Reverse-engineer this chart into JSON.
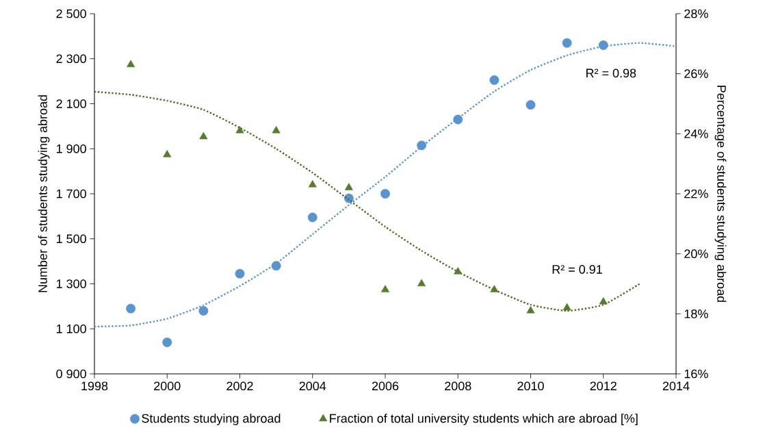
{
  "chart_data": {
    "type": "scatter",
    "xlabel": null,
    "ylabel": "Number of students studying abroad",
    "y2label": "Percentage of students studying abroad",
    "xlim": [
      1998,
      2014
    ],
    "xticks": [
      1998,
      2000,
      2002,
      2004,
      2006,
      2008,
      2010,
      2012,
      2014
    ],
    "ylim": [
      900,
      2500
    ],
    "yticks": [
      {
        "value": 900,
        "label": "0 900"
      },
      {
        "value": 1100,
        "label": "1 100"
      },
      {
        "value": 1300,
        "label": "1 300"
      },
      {
        "value": 1500,
        "label": "1 500"
      },
      {
        "value": 1700,
        "label": "1 700"
      },
      {
        "value": 1900,
        "label": "1 900"
      },
      {
        "value": 2100,
        "label": "2 100"
      },
      {
        "value": 2300,
        "label": "2 300"
      },
      {
        "value": 2500,
        "label": "2 500"
      }
    ],
    "y2lim": [
      16,
      28
    ],
    "y2ticks": [
      {
        "value": 16,
        "label": "16%"
      },
      {
        "value": 18,
        "label": "18%"
      },
      {
        "value": 20,
        "label": "20%"
      },
      {
        "value": 22,
        "label": "22%"
      },
      {
        "value": 24,
        "label": "24%"
      },
      {
        "value": 26,
        "label": "26%"
      },
      {
        "value": 28,
        "label": "28%"
      }
    ],
    "grid": false,
    "legend": "bottom",
    "series": [
      {
        "name": "Students studying abroad",
        "marker": "circle",
        "color": "#5b93cc",
        "x": [
          1999,
          2000,
          2001,
          2002,
          2003,
          2004,
          2005,
          2006,
          2007,
          2008,
          2009,
          2010,
          2011,
          2012
        ],
        "values": [
          1190,
          1040,
          1180,
          1345,
          1380,
          1595,
          1680,
          1700,
          1915,
          2030,
          2205,
          2095,
          2370,
          2360
        ]
      },
      {
        "name": "Fraction of total university students which are abroad [%]",
        "marker": "triangle",
        "axis": "y2",
        "color": "#5a7a32",
        "x": [
          1999,
          2000,
          2001,
          2002,
          2003,
          2004,
          2005,
          2006,
          2007,
          2008,
          2009,
          2010,
          2011,
          2012
        ],
        "values": [
          26.3,
          23.3,
          23.9,
          24.1,
          24.1,
          22.3,
          22.2,
          18.8,
          19.0,
          19.4,
          18.8,
          18.1,
          18.2,
          18.4
        ]
      },
      {
        "type": "line",
        "marker": "none",
        "line_style": "dotted",
        "color": "#5b93cc",
        "x": [
          1998,
          1999,
          2000,
          2001,
          2002,
          2003,
          2004,
          2005,
          2006,
          2007,
          2008,
          2009,
          2010,
          2011,
          2012,
          2013,
          2014
        ],
        "values": [
          1110,
          1115,
          1145,
          1205,
          1290,
          1390,
          1520,
          1650,
          1775,
          1910,
          2035,
          2155,
          2250,
          2315,
          2355,
          2370,
          2355
        ]
      },
      {
        "type": "line",
        "marker": "none",
        "line_style": "dotted",
        "axis": "y2",
        "color": "#4f6b28",
        "x": [
          1998,
          1999,
          2000,
          2001,
          2002,
          2003,
          2004,
          2005,
          2006,
          2007,
          2008,
          2009,
          2010,
          2011,
          2012,
          2013
        ],
        "values": [
          25.4,
          25.3,
          25.1,
          24.8,
          24.2,
          23.5,
          22.7,
          21.8,
          20.9,
          20.1,
          19.4,
          18.8,
          18.3,
          18.1,
          18.3,
          19.0
        ]
      }
    ],
    "annotations": [
      "R² = 0.98",
      "R² = 0.91"
    ]
  }
}
